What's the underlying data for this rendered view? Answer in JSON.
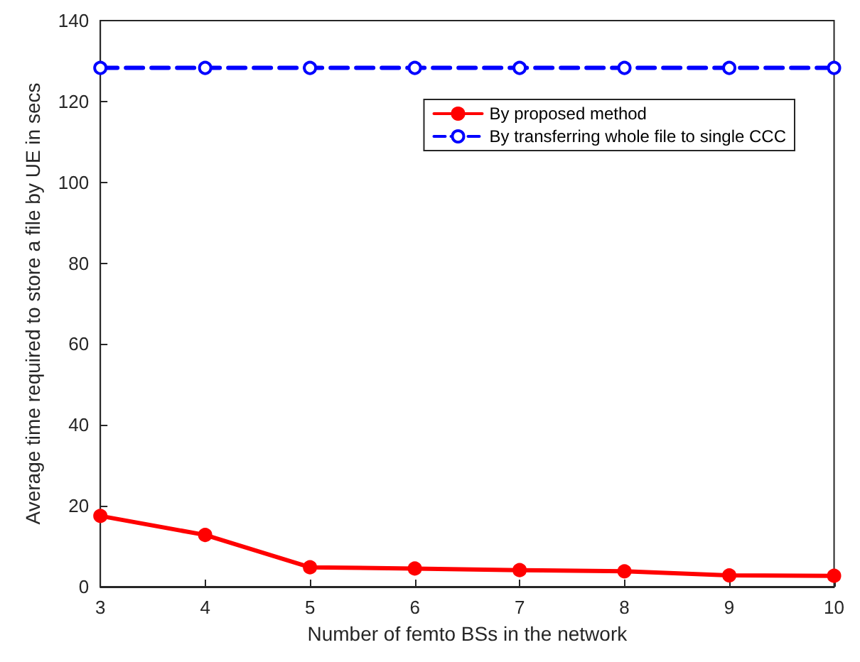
{
  "chart_data": {
    "type": "line",
    "xlabel": "Number of femto BSs in the network",
    "ylabel": "Average time required to store a file by UE in secs",
    "x": [
      3,
      4,
      5,
      6,
      7,
      8,
      9,
      10
    ],
    "xlim": [
      3,
      10
    ],
    "xticks": [
      3,
      4,
      5,
      6,
      7,
      8,
      9,
      10
    ],
    "ylim": [
      0,
      140
    ],
    "yticks": [
      0,
      20,
      40,
      60,
      80,
      100,
      120,
      140
    ],
    "grid": false,
    "legend": "top right",
    "marker": "circle",
    "series": [
      {
        "name": "By proposed method",
        "color": "#ff0000",
        "line_style": "solid",
        "values": [
          17.5,
          12.8,
          4.8,
          4.5,
          4.1,
          3.8,
          2.8,
          2.7
        ]
      },
      {
        "name": "By transferring whole file to single CCC",
        "color": "#0000ff",
        "line_style": "dashed",
        "values": [
          128.3,
          128.3,
          128.3,
          128.3,
          128.3,
          128.3,
          128.3,
          128.3
        ]
      }
    ]
  }
}
